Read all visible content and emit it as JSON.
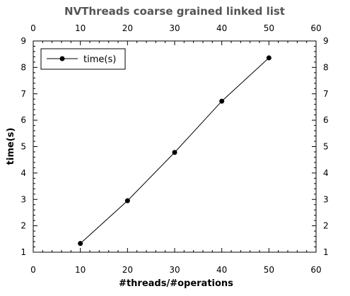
{
  "chart_data": {
    "type": "line",
    "title": "NVThreads coarse grained linked list",
    "xlabel": "#threads/#operations",
    "ylabel": "time(s)",
    "xlim": [
      0,
      60
    ],
    "ylim": [
      1,
      9
    ],
    "x_ticks": [
      "0",
      "10",
      "20",
      "30",
      "40",
      "50",
      "60"
    ],
    "y_ticks": [
      "1",
      "2",
      "3",
      "4",
      "5",
      "6",
      "7",
      "8",
      "9"
    ],
    "grid": false,
    "legend_position": "top-left",
    "series": [
      {
        "name": "time(s)",
        "color": "#000000",
        "marker": "circle",
        "x": [
          10,
          20,
          30,
          40,
          50
        ],
        "y": [
          1.33,
          2.95,
          4.78,
          6.72,
          8.36
        ]
      }
    ]
  }
}
